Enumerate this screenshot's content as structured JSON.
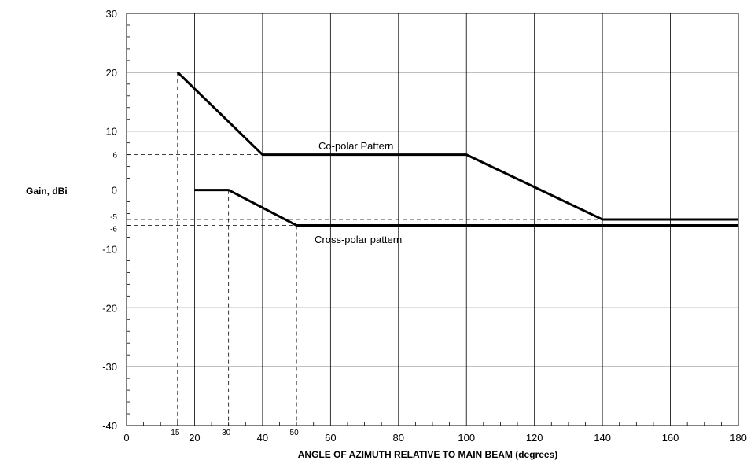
{
  "chart_data": {
    "type": "line",
    "xlabel": "ANGLE OF AZIMUTH RELATIVE TO MAIN BEAM (degrees)",
    "ylabel": "Gain, dBi",
    "xlim": [
      0,
      180
    ],
    "ylim": [
      -40,
      30
    ],
    "x_ticks": [
      0,
      20,
      40,
      60,
      80,
      100,
      120,
      140,
      160,
      180
    ],
    "y_ticks": [
      30,
      20,
      10,
      0,
      -10,
      -20,
      -30,
      -40
    ],
    "extra_y_ticks": [
      6,
      -5,
      -6
    ],
    "extra_x_ticks": [
      15,
      30,
      50
    ],
    "grid": true,
    "series": [
      {
        "name": "Co-polar Pattern",
        "points": [
          [
            15,
            20
          ],
          [
            40,
            6
          ],
          [
            100,
            6
          ],
          [
            140,
            -5
          ],
          [
            180,
            -5
          ]
        ]
      },
      {
        "name": "Cross-polar pattern",
        "points": [
          [
            20,
            0
          ],
          [
            30,
            0
          ],
          [
            50,
            -6
          ],
          [
            180,
            -6
          ]
        ]
      }
    ],
    "reference_lines": [
      {
        "from": [
          15,
          20
        ],
        "to": [
          15,
          -40
        ]
      },
      {
        "from": [
          30,
          0
        ],
        "to": [
          30,
          -40
        ]
      },
      {
        "from": [
          50,
          -6
        ],
        "to": [
          50,
          -40
        ]
      },
      {
        "from": [
          0,
          6
        ],
        "to": [
          40,
          6
        ]
      },
      {
        "from": [
          0,
          -5
        ],
        "to": [
          180,
          -5
        ]
      },
      {
        "from": [
          0,
          -6
        ],
        "to": [
          50,
          -6
        ]
      }
    ]
  }
}
